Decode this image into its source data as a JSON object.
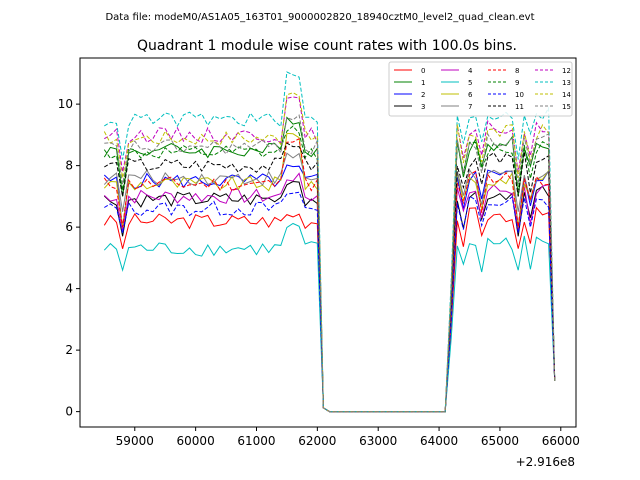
{
  "header": {
    "suptitle": "Data file: modeM0/AS1A05_163T01_9000002820_18940cztM0_level2_quad_clean.evt"
  },
  "chart_data": {
    "type": "line",
    "title": "Quadrant 1 module wise count rates with 100.0s bins.",
    "xlabel": "",
    "ylabel": "",
    "x_offset_label": "+2.916e8",
    "xlim": [
      58100,
      66250
    ],
    "ylim": [
      -0.5,
      11.5
    ],
    "xticks": [
      59000,
      60000,
      61000,
      62000,
      63000,
      64000,
      65000,
      66000
    ],
    "yticks": [
      0,
      2,
      4,
      6,
      8,
      10
    ],
    "grid": false,
    "legend_placement": "top-right",
    "legend_columns": 4,
    "x": [
      58500,
      58600,
      58700,
      58800,
      58900,
      59000,
      59100,
      59200,
      59300,
      59400,
      59500,
      59600,
      59700,
      59800,
      59900,
      60000,
      60100,
      60200,
      60300,
      60400,
      60500,
      60600,
      60700,
      60800,
      60900,
      61000,
      61100,
      61200,
      61300,
      61400,
      61500,
      61600,
      61700,
      61800,
      61900,
      62000,
      62100,
      62200,
      62300,
      62400,
      62500,
      62600,
      62700,
      62800,
      62900,
      63000,
      63100,
      63200,
      63300,
      63400,
      63500,
      63600,
      63700,
      63800,
      63900,
      64000,
      64100,
      64200,
      64300,
      64400,
      64500,
      64600,
      64700,
      64800,
      64900,
      65000,
      65100,
      65200,
      65300,
      65400,
      65500,
      65600,
      65700,
      65800,
      65900
    ],
    "series": [
      {
        "name": "0",
        "color": "#ff0000",
        "dash": "solid",
        "level": 6.2,
        "low": 5.3,
        "peak": 6.4
      },
      {
        "name": "1",
        "color": "#008000",
        "dash": "solid",
        "level": 8.5,
        "low": 7.0,
        "peak": 9.5
      },
      {
        "name": "2",
        "color": "#0000ff",
        "dash": "solid",
        "level": 7.5,
        "low": 6.0,
        "peak": 7.9
      },
      {
        "name": "3",
        "color": "#000000",
        "dash": "solid",
        "level": 6.9,
        "low": 5.7,
        "peak": 7.5
      },
      {
        "name": "4",
        "color": "#bf00bf",
        "dash": "solid",
        "level": 7.0,
        "low": 5.9,
        "peak": 7.6
      },
      {
        "name": "5",
        "color": "#00bfbf",
        "dash": "solid",
        "level": 5.3,
        "low": 4.6,
        "peak": 6.0
      },
      {
        "name": "6",
        "color": "#bfbf00",
        "dash": "solid",
        "level": 7.4,
        "low": 6.0,
        "peak": 9.0
      },
      {
        "name": "7",
        "color": "#808080",
        "dash": "solid",
        "level": 7.6,
        "low": 6.5,
        "peak": 8.3
      },
      {
        "name": "8",
        "color": "#ff0000",
        "dash": "dashed",
        "level": 7.4,
        "low": 6.0,
        "peak": 8.9
      },
      {
        "name": "9",
        "color": "#008000",
        "dash": "dashed",
        "level": 8.4,
        "low": 7.2,
        "peak": 9.2
      },
      {
        "name": "10",
        "color": "#0000ff",
        "dash": "dashed",
        "level": 6.6,
        "low": 5.8,
        "peak": 7.1
      },
      {
        "name": "11",
        "color": "#000000",
        "dash": "dashed",
        "level": 8.0,
        "low": 7.0,
        "peak": 8.7
      },
      {
        "name": "12",
        "color": "#bf00bf",
        "dash": "dashed",
        "level": 9.0,
        "low": 7.8,
        "peak": 10.1
      },
      {
        "name": "13",
        "color": "#00bfbf",
        "dash": "dashed",
        "level": 9.5,
        "low": 8.2,
        "peak": 10.9
      },
      {
        "name": "14",
        "color": "#bfbf00",
        "dash": "dashed",
        "level": 8.9,
        "low": 7.6,
        "peak": 10.4
      },
      {
        "name": "15",
        "color": "#808080",
        "dash": "dashed",
        "level": 8.6,
        "low": 7.4,
        "peak": 9.6
      }
    ]
  }
}
